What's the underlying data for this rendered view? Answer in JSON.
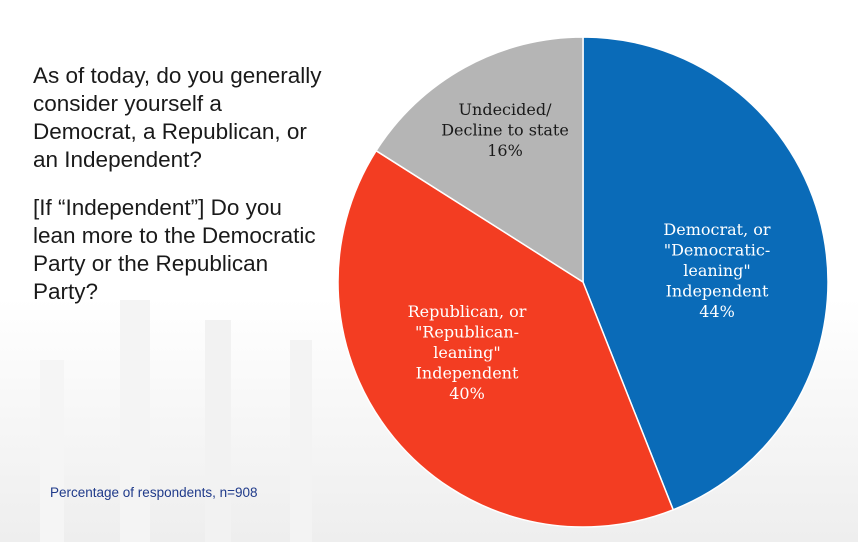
{
  "question": {
    "line1": "As of today, do you generally consider yourself a Democrat, a Republican, or an Independent?",
    "line2": "[If “Independent”] Do you lean more to the Democratic Party or the Republican Party?"
  },
  "footnote": "Percentage of respondents, n=908",
  "chart_data": {
    "type": "pie",
    "title": "",
    "slices": [
      {
        "name": "Democrat, or \"Democratic-leaning\" Independent",
        "value": 44,
        "color": "#0a6bb8",
        "text_color": "#ffffff",
        "label_lines": [
          "Democrat, or",
          "\"Democratic-",
          "leaning\"",
          "Independent",
          "44%"
        ]
      },
      {
        "name": "Republican, or \"Republican-leaning\" Independent",
        "value": 40,
        "color": "#f33d22",
        "text_color": "#ffffff",
        "label_lines": [
          "Republican, or",
          "\"Republican-",
          "leaning\"",
          "Independent",
          "40%"
        ]
      },
      {
        "name": "Undecided/ Decline to state",
        "value": 16,
        "color": "#b5b5b5",
        "text_color": "#1a1a1a",
        "label_lines": [
          "Undecided/",
          "Decline to state",
          "16%"
        ]
      }
    ]
  }
}
